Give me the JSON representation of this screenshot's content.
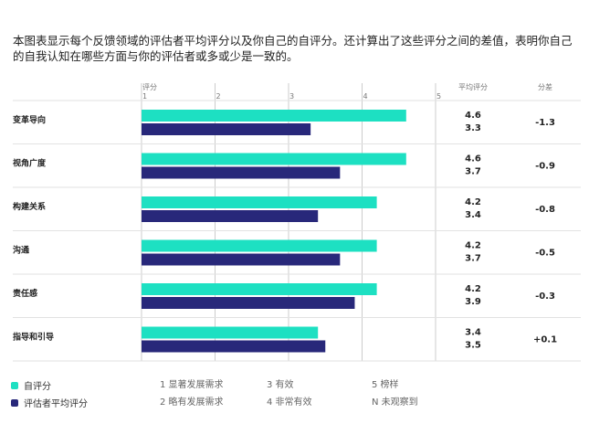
{
  "intro": "本图表显示每个反馈领域的评估者平均评分以及你自己的自评分。还计算出了这些评分之间的差值，表明你自己的自我认知在哪些方面与你的评估者或多或少是一致的。",
  "headers": {
    "axis": "评分",
    "avg": "平均评分",
    "diff": "分差"
  },
  "colors": {
    "self": "#1de0c2",
    "rater": "#28287a",
    "grid": "#cccccc"
  },
  "legend": [
    {
      "label": "自评分",
      "color": "#1de0c2"
    },
    {
      "label": "评估者平均评分",
      "color": "#28287a"
    }
  ],
  "scale": [
    {
      "text": "1  显著发展需求"
    },
    {
      "text": "2  略有发展需求"
    },
    {
      "text": "3  有效"
    },
    {
      "text": "4  非常有效"
    },
    {
      "text": "5  榜样"
    },
    {
      "text": "N 未观察到"
    }
  ],
  "chart_data": {
    "type": "bar",
    "orientation": "horizontal",
    "xlabel": "评分",
    "xlim": [
      1,
      5
    ],
    "xticks": [
      "1",
      "2",
      "3",
      "4",
      "5"
    ],
    "categories": [
      "变革导向",
      "视角广度",
      "构建关系",
      "沟通",
      "责任感",
      "指导和引导"
    ],
    "series": [
      {
        "name": "自评分",
        "values": [
          4.6,
          4.6,
          4.2,
          4.2,
          4.2,
          3.4
        ]
      },
      {
        "name": "评估者平均评分",
        "values": [
          3.3,
          3.7,
          3.4,
          3.7,
          3.9,
          3.5
        ]
      }
    ],
    "diffs": [
      "-1.3",
      "-0.9",
      "-0.8",
      "-0.5",
      "-0.3",
      "+0.1"
    ],
    "grid": true,
    "legend_position": "bottom-left"
  }
}
